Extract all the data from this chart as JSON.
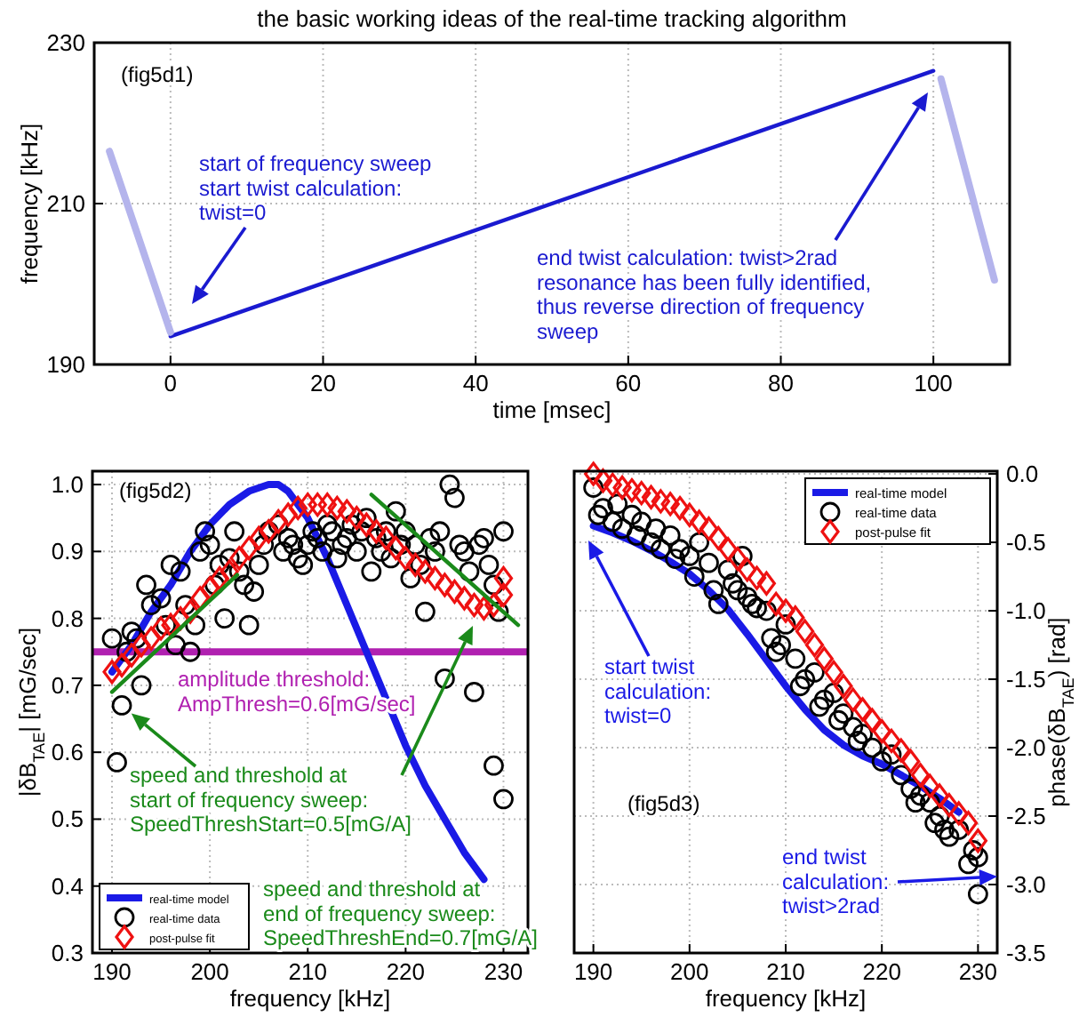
{
  "chart_data": [
    {
      "type": "line",
      "title": "the basic working ideas of the real-time tracking algorithm",
      "xlabel": "time [msec]",
      "ylabel": "frequency [kHz]",
      "xlim": [
        -10,
        110
      ],
      "ylim": [
        190,
        230
      ],
      "xticks": [
        0,
        20,
        40,
        60,
        80,
        100
      ],
      "yticks": [
        190,
        210,
        230
      ],
      "grid": true,
      "legend": false,
      "series": [
        {
          "color": "#1a1ad0",
          "x": [
            0,
            100
          ],
          "values": [
            193.5,
            226.5
          ]
        },
        {
          "color": "#b4b4ec",
          "x": [
            -8,
            0
          ],
          "values": [
            216.5,
            194
          ]
        },
        {
          "color": "#b4b4ec",
          "x": [
            101,
            108
          ],
          "values": [
            225.5,
            200.5
          ]
        }
      ],
      "annotations": [
        "(fig5d1)",
        "start of frequency sweep\nstart twist calculation:\ntwist=0",
        "end twist calculation: twist>2rad\nresonance has been fully identified,\nthus reverse direction of frequency\nsweep"
      ]
    },
    {
      "type": "scatter",
      "xlabel": "frequency [kHz]",
      "ylabel": "|δB$_{TAE}$| [mG/sec]",
      "xlim": [
        188,
        232.5
      ],
      "ylim": [
        0.3,
        1.02
      ],
      "xticks": [
        190,
        200,
        210,
        220,
        230
      ],
      "yticks": [
        0.3,
        0.4,
        0.5,
        0.6,
        0.7,
        0.8,
        0.9,
        {
          "value": 1,
          "label": "1.0"
        }
      ],
      "grid": true,
      "legend": "bottom left",
      "series": [
        {
          "name": "real-time model",
          "type": "line",
          "color": "#1a1ae6",
          "x": [
            190,
            192,
            194,
            196,
            198,
            200,
            202,
            204,
            206,
            207,
            208,
            210,
            212,
            214,
            216,
            218,
            220,
            222,
            224,
            226,
            228
          ],
          "values": [
            0.72,
            0.76,
            0.81,
            0.85,
            0.9,
            0.94,
            0.97,
            0.99,
            1.0,
            1.0,
            0.99,
            0.95,
            0.89,
            0.82,
            0.75,
            0.68,
            0.61,
            0.55,
            0.5,
            0.45,
            0.41
          ]
        },
        {
          "name": "real-time data",
          "marker": "circle",
          "color": "#000000",
          "x": [
            190,
            190.5,
            191,
            191.5,
            192,
            192.5,
            193,
            193.5,
            194,
            195,
            195.5,
            196,
            196.5,
            197,
            197.5,
            198,
            198.5,
            199,
            199.5,
            200,
            200.5,
            201,
            201.5,
            202,
            202.5,
            203,
            203.5,
            204,
            204.5,
            205,
            205.5,
            206,
            207,
            207.5,
            208,
            208.5,
            209,
            209.5,
            210,
            210.5,
            211,
            211.5,
            212,
            212.5,
            213,
            213.5,
            214,
            214.5,
            215,
            215.5,
            216,
            216.5,
            217,
            217.5,
            218,
            218.5,
            219,
            219.5,
            220,
            220.5,
            221,
            221.5,
            222,
            222.5,
            223,
            223.5,
            224,
            224.5,
            225,
            225.5,
            226,
            226.5,
            227,
            227.5,
            228,
            228.5,
            229,
            229.5,
            230,
            230,
            229
          ],
          "values": [
            0.77,
            0.585,
            0.67,
            0.75,
            0.78,
            0.77,
            0.7,
            0.85,
            0.82,
            0.83,
            0.79,
            0.88,
            0.76,
            0.87,
            0.82,
            0.75,
            0.79,
            0.9,
            0.93,
            0.91,
            0.85,
            0.88,
            0.8,
            0.89,
            0.93,
            0.87,
            0.85,
            0.79,
            0.84,
            0.88,
            0.91,
            0.93,
            0.94,
            0.9,
            0.92,
            0.91,
            0.89,
            0.88,
            0.91,
            0.93,
            0.92,
            0.9,
            0.94,
            0.93,
            0.89,
            0.91,
            0.92,
            0.94,
            0.9,
            0.93,
            0.95,
            0.87,
            0.92,
            0.9,
            0.93,
            0.89,
            0.96,
            0.91,
            0.93,
            0.86,
            0.91,
            0.88,
            0.81,
            0.92,
            0.9,
            0.93,
            0.71,
            1.0,
            0.98,
            0.91,
            0.9,
            0.87,
            0.69,
            0.91,
            0.92,
            0.88,
            0.58,
            0.81,
            0.53,
            0.93,
            0.85
          ]
        },
        {
          "name": "post-pulse fit",
          "marker": "diamond",
          "color": "#ee1111",
          "x": [
            190,
            191,
            192,
            193,
            194,
            195,
            196,
            197,
            198,
            199,
            200,
            201,
            202,
            203,
            204,
            205,
            206,
            207,
            208,
            209,
            210,
            211,
            212,
            213,
            214,
            215,
            216,
            217,
            218,
            219,
            220,
            221,
            222,
            223,
            224,
            225,
            226,
            227,
            228,
            229,
            230,
            230
          ],
          "values": [
            0.72,
            0.73,
            0.745,
            0.76,
            0.77,
            0.785,
            0.79,
            0.8,
            0.81,
            0.83,
            0.845,
            0.86,
            0.87,
            0.89,
            0.905,
            0.92,
            0.93,
            0.945,
            0.955,
            0.965,
            0.97,
            0.97,
            0.97,
            0.965,
            0.96,
            0.95,
            0.94,
            0.93,
            0.92,
            0.905,
            0.89,
            0.88,
            0.87,
            0.86,
            0.85,
            0.84,
            0.83,
            0.82,
            0.815,
            0.82,
            0.86,
            0.835
          ]
        },
        {
          "type": "line",
          "color": "#1a8a1a",
          "x": [
            190,
            202.8
          ],
          "values": [
            0.69,
            0.865
          ]
        },
        {
          "type": "line",
          "color": "#1a8a1a",
          "x": [
            216.5,
            231.5
          ],
          "values": [
            0.985,
            0.79
          ]
        }
      ],
      "ref_lines": [
        {
          "axis": "y",
          "value": 0.75,
          "color": "#b020b0"
        }
      ],
      "annotations": [
        "(fig5d2)",
        {
          "text": "speed and threshold at\nstart of frequency sweep:\nSpeedThreshStart=0.5[mG/A]",
          "x": 191,
          "y": 0.67
        },
        "speed and threshold at\nend of frequency sweep:\nSpeedThreshEnd=0.7[mG/A]",
        "amplitude threshold:\nAmpThresh=0.6[mG/sec]"
      ]
    },
    {
      "type": "scatter",
      "xlabel": "frequency [kHz]",
      "y2label": "phase(δB$_{TAE}$) [rad]",
      "xlim": [
        188,
        232
      ],
      "y2lim": [
        -3.5,
        0.02
      ],
      "xticks": [
        190,
        200,
        210,
        220,
        230
      ],
      "y2ticks": [
        {
          "value": 0,
          "label": "0.0"
        },
        -0.5,
        {
          "value": -1,
          "label": "-1.0"
        },
        -1.5,
        {
          "value": -2,
          "label": "-2.0"
        },
        -2.5,
        {
          "value": -3,
          "label": "-3.0"
        },
        -3.5
      ],
      "grid": true,
      "legend": "top right",
      "series": [
        {
          "name": "real-time model",
          "type": "line",
          "axis": "y2",
          "color": "#1a1ae6",
          "x": [
            190,
            192,
            194,
            196,
            198,
            200,
            202,
            204,
            206,
            208,
            210,
            212,
            214,
            216,
            218,
            220,
            222,
            224,
            226,
            228
          ],
          "values": [
            -0.38,
            -0.43,
            -0.49,
            -0.56,
            -0.64,
            -0.73,
            -0.85,
            -0.99,
            -1.17,
            -1.36,
            -1.55,
            -1.72,
            -1.87,
            -1.98,
            -2.06,
            -2.12,
            -2.2,
            -2.28,
            -2.37,
            -2.47
          ]
        },
        {
          "name": "real-time data",
          "axis": "y2",
          "marker": "circle",
          "color": "#000000",
          "x": [
            190,
            190.5,
            191,
            192,
            192.5,
            193,
            194,
            194.5,
            195,
            196,
            196.5,
            197,
            198,
            198.5,
            199,
            200,
            200.5,
            201,
            202,
            202.5,
            203,
            204,
            204.5,
            205,
            205.5,
            206,
            206.5,
            207,
            208,
            208.5,
            209,
            209.5,
            210,
            211,
            211.5,
            212,
            213,
            213.5,
            214,
            215,
            215.5,
            216,
            217,
            217.5,
            218,
            219,
            220,
            221,
            222,
            223,
            223.5,
            224,
            225,
            225.5,
            226,
            226.5,
            227,
            228,
            229,
            229.5,
            230,
            230
          ],
          "values": [
            -0.1,
            -0.3,
            -0.25,
            -0.35,
            -0.22,
            -0.4,
            -0.3,
            -0.45,
            -0.35,
            -0.5,
            -0.4,
            -0.55,
            -0.45,
            -0.62,
            -0.55,
            -0.6,
            -0.75,
            -0.5,
            -0.65,
            -0.85,
            -0.95,
            -0.7,
            -0.8,
            -0.85,
            -0.6,
            -0.9,
            -0.95,
            -0.98,
            -1.0,
            -1.2,
            -1.3,
            -1.25,
            -1.1,
            -1.35,
            -1.55,
            -1.5,
            -1.45,
            -1.7,
            -1.65,
            -1.6,
            -1.8,
            -1.75,
            -1.85,
            -1.95,
            -1.9,
            -2.0,
            -2.1,
            -2.05,
            -2.2,
            -2.3,
            -2.4,
            -2.35,
            -2.4,
            -2.55,
            -2.5,
            -2.6,
            -2.65,
            -2.6,
            -2.85,
            -2.75,
            -3.07,
            -2.8
          ]
        },
        {
          "name": "post-pulse fit",
          "axis": "y2",
          "marker": "diamond",
          "color": "#ee1111",
          "x": [
            190,
            191,
            192,
            193,
            194,
            195,
            196,
            197,
            198,
            199,
            200,
            201,
            202,
            203,
            204,
            205,
            206,
            207,
            208,
            209,
            210,
            211,
            212,
            213,
            214,
            215,
            216,
            217,
            218,
            219,
            220,
            221,
            222,
            223,
            224,
            225,
            226,
            227,
            228,
            229,
            230
          ],
          "values": [
            0.0,
            -0.05,
            -0.08,
            -0.1,
            -0.12,
            -0.14,
            -0.17,
            -0.2,
            -0.22,
            -0.25,
            -0.3,
            -0.35,
            -0.4,
            -0.47,
            -0.55,
            -0.62,
            -0.7,
            -0.76,
            -0.8,
            -0.95,
            -1.0,
            -1.05,
            -1.15,
            -1.25,
            -1.35,
            -1.45,
            -1.55,
            -1.65,
            -1.72,
            -1.8,
            -1.88,
            -1.95,
            -2.02,
            -2.1,
            -2.2,
            -2.28,
            -2.35,
            -2.42,
            -2.48,
            -2.55,
            -2.68
          ]
        }
      ],
      "annotations": [
        "(fig5d3)",
        "start twist\ncalculation:\ntwist=0",
        "end twist\ncalculation:\ntwist>2rad"
      ]
    }
  ]
}
